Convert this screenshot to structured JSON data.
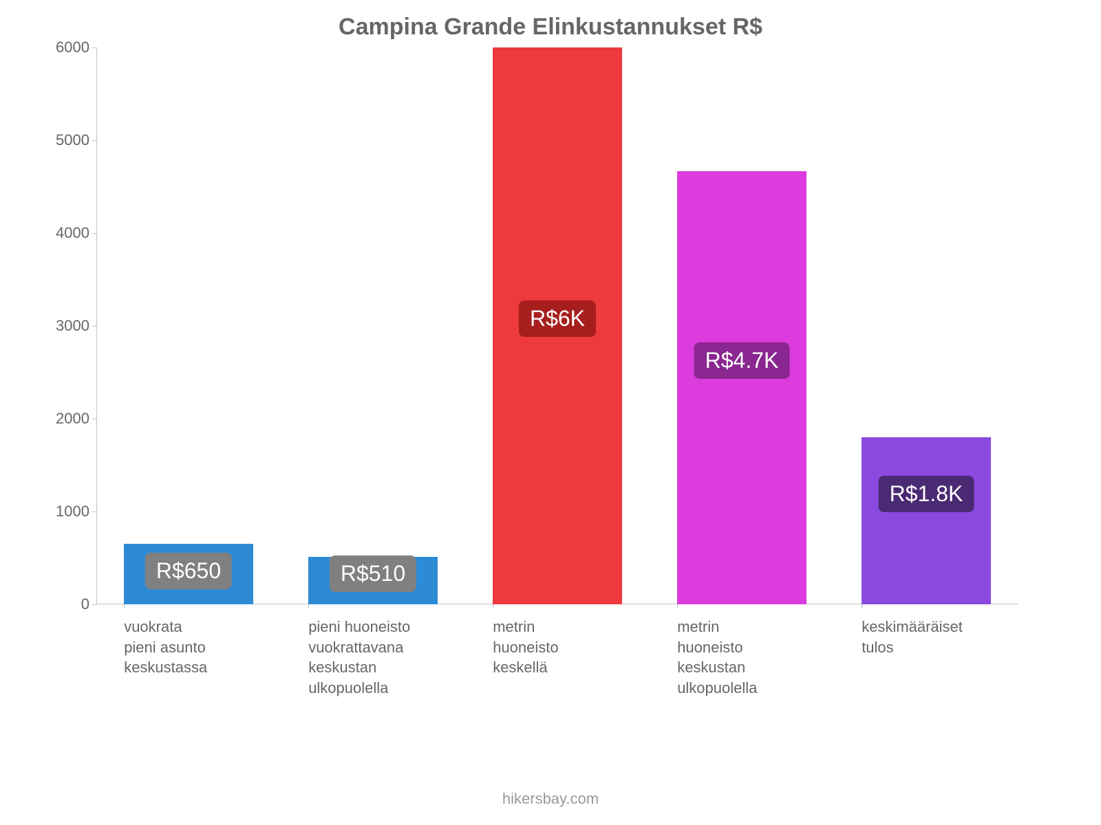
{
  "chart": {
    "type": "bar",
    "title": "Campina Grande Elinkustannukset R$",
    "title_color": "#666666",
    "title_fontsize": 34,
    "background_color": "#ffffff",
    "axis_color": "#c0c0c0",
    "tick_label_color": "#666666",
    "tick_fontsize": 22,
    "y": {
      "min": 0,
      "max": 6000,
      "ticks": [
        0,
        1000,
        2000,
        3000,
        4000,
        5000,
        6000
      ]
    },
    "bar_width_pct": 14,
    "bars": [
      {
        "label_lines": [
          "vuokrata",
          "pieni asunto",
          "keskustassa"
        ],
        "value": 650,
        "value_label": "R$650",
        "color": "#2d8bd6",
        "badge_bg": "#808080"
      },
      {
        "label_lines": [
          "pieni huoneisto",
          "vuokrattavana",
          "keskustan",
          "ulkopuolella"
        ],
        "value": 510,
        "value_label": "R$510",
        "color": "#2d8bd6",
        "badge_bg": "#808080"
      },
      {
        "label_lines": [
          "metrin",
          "huoneisto",
          "keskellä"
        ],
        "value": 6000,
        "value_label": "R$6K",
        "color": "#ee3a3d",
        "badge_bg": "#a71e1e"
      },
      {
        "label_lines": [
          "metrin",
          "huoneisto",
          "keskustan",
          "ulkopuolella"
        ],
        "value": 4666,
        "value_label": "R$4.7K",
        "color": "#dc3cdd",
        "badge_bg": "#8a2690"
      },
      {
        "label_lines": [
          "keskimääräiset",
          "tulos"
        ],
        "value": 1800,
        "value_label": "R$1.8K",
        "color": "#8b4adf",
        "badge_bg": "#4a2a72"
      }
    ],
    "badge_fontsize": 32,
    "badge_text_color": "#ffffff",
    "attribution": "hikersbay.com",
    "attribution_color": "#999999"
  }
}
